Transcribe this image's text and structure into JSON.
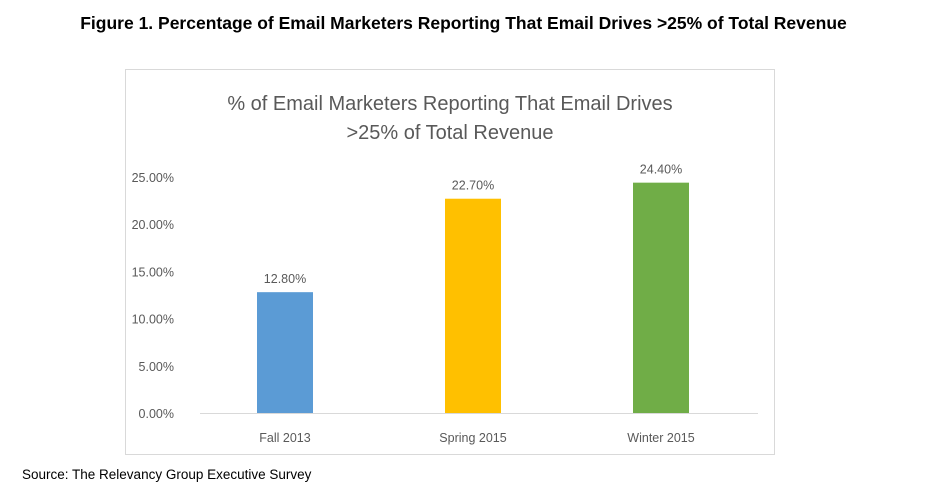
{
  "figure_title": "Figure 1. Percentage of Email Marketers Reporting That Email Drives >25% of Total Revenue",
  "source": "Source: The Relevancy Group Executive Survey",
  "chart_data": {
    "type": "bar",
    "title_lines": [
      "% of Email Marketers Reporting That Email Drives",
      ">25% of Total Revenue"
    ],
    "categories": [
      "Fall 2013",
      "Spring 2015",
      "Winter 2015"
    ],
    "values": [
      12.8,
      22.7,
      24.4
    ],
    "data_labels": [
      "12.80%",
      "22.70%",
      "24.40%"
    ],
    "colors": [
      "#5b9bd5",
      "#ffc000",
      "#70ad47"
    ],
    "ylim": [
      0,
      25
    ],
    "yticks": [
      0,
      5,
      10,
      15,
      20,
      25
    ],
    "ytick_labels": [
      "0.00%",
      "5.00%",
      "10.00%",
      "15.00%",
      "20.00%",
      "25.00%"
    ],
    "xlabel": "",
    "ylabel": "",
    "grid": false,
    "legend": "none"
  }
}
